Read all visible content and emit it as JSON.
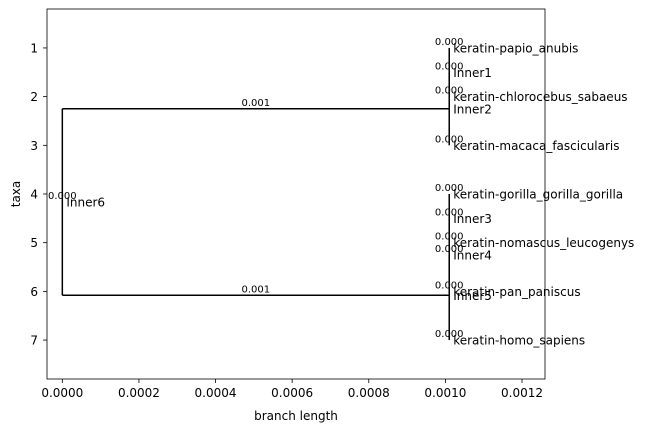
{
  "chart_data": {
    "type": "phylogram",
    "xlabel": "branch length",
    "ylabel": "taxa",
    "xlim": [
      -4e-05,
      0.00126
    ],
    "ylim": [
      7.8,
      0.2
    ],
    "x_ticks": [
      0.0,
      0.0002,
      0.0004,
      0.0006,
      0.0008,
      0.001,
      0.0012
    ],
    "x_tick_labels": [
      "0.0000",
      "0.0002",
      "0.0004",
      "0.0006",
      "0.0008",
      "0.0010",
      "0.0012"
    ],
    "y_ticks": [
      1,
      2,
      3,
      4,
      5,
      6,
      7
    ],
    "y_tick_labels": [
      "1",
      "2",
      "3",
      "4",
      "5",
      "6",
      "7"
    ],
    "line_color": "#000000",
    "nodes": [
      {
        "id": "inner6",
        "label": "Inner6",
        "x": 0.0,
        "y": 4.167,
        "branch_length_label": "0.000"
      },
      {
        "id": "inner2",
        "label": "Inner2",
        "x": 0.00101,
        "y": 2.25,
        "branch_length_label": "0.001"
      },
      {
        "id": "inner5",
        "label": "Inner5",
        "x": 0.00101,
        "y": 6.08,
        "branch_length_label": "0.001"
      },
      {
        "id": "inner1",
        "label": "Inner1",
        "x": 0.00101,
        "y": 1.5,
        "branch_length_label": "0.000"
      },
      {
        "id": "papio",
        "label": "keratin-papio_anubis",
        "x": 0.00101,
        "y": 1,
        "branch_length_label": "0.000"
      },
      {
        "id": "chlorocebus",
        "label": "keratin-chlorocebus_sabaeus",
        "x": 0.00101,
        "y": 2,
        "branch_length_label": "0.000"
      },
      {
        "id": "macaca",
        "label": "keratin-macaca_fascicularis",
        "x": 0.00101,
        "y": 3,
        "branch_length_label": "0.000"
      },
      {
        "id": "inner4",
        "label": "Inner4",
        "x": 0.00101,
        "y": 5.25,
        "branch_length_label": "0.000"
      },
      {
        "id": "inner3",
        "label": "Inner3",
        "x": 0.00101,
        "y": 4.5,
        "branch_length_label": "0.000"
      },
      {
        "id": "gorilla",
        "label": "keratin-gorilla_gorilla_gorilla",
        "x": 0.00101,
        "y": 4,
        "branch_length_label": "0.000"
      },
      {
        "id": "nomascus",
        "label": "keratin-nomascus_leucogenys",
        "x": 0.00101,
        "y": 5,
        "branch_length_label": "0.000"
      },
      {
        "id": "pan",
        "label": "keratin-pan_paniscus",
        "x": 0.00101,
        "y": 6,
        "branch_length_label": "0.000"
      },
      {
        "id": "homo",
        "label": "keratin-homo_sapiens",
        "x": 0.00101,
        "y": 7,
        "branch_length_label": "0.000"
      }
    ],
    "edges": [
      {
        "parent": "inner6",
        "child": "inner2"
      },
      {
        "parent": "inner6",
        "child": "inner5"
      },
      {
        "parent": "inner2",
        "child": "inner1"
      },
      {
        "parent": "inner2",
        "child": "macaca"
      },
      {
        "parent": "inner1",
        "child": "papio"
      },
      {
        "parent": "inner1",
        "child": "chlorocebus"
      },
      {
        "parent": "inner5",
        "child": "inner4"
      },
      {
        "parent": "inner5",
        "child": "homo"
      },
      {
        "parent": "inner4",
        "child": "inner3"
      },
      {
        "parent": "inner4",
        "child": "pan"
      },
      {
        "parent": "inner3",
        "child": "gorilla"
      },
      {
        "parent": "inner3",
        "child": "nomascus"
      }
    ]
  }
}
